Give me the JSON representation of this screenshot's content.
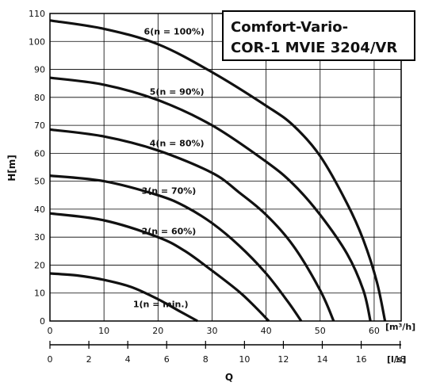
{
  "chart_data": {
    "type": "line",
    "title_lines": [
      "Comfort-Vario-",
      "COR-1 MVIE 3204/VR"
    ],
    "xlabel": "Q",
    "ylabel": "H[m]",
    "x_unit_primary": "[m³/h]",
    "x_unit_secondary": "[l/s]",
    "xlim": [
      0,
      65
    ],
    "ylim": [
      0,
      110
    ],
    "x_ticks_primary": [
      "0",
      "10",
      "20",
      "30",
      "40",
      "50",
      "60"
    ],
    "x_ticks_secondary": [
      "0",
      "2",
      "4",
      "6",
      "8",
      "10",
      "12",
      "14",
      "16",
      "18"
    ],
    "y_ticks": [
      "0",
      "10",
      "20",
      "30",
      "40",
      "50",
      "60",
      "70",
      "80",
      "90",
      "100",
      "110"
    ],
    "grid": true,
    "series": [
      {
        "name": "1(n = min.)",
        "x": [
          0,
          5,
          10,
          15,
          20,
          24,
          27.3
        ],
        "y": [
          17,
          16.3,
          14.7,
          12.2,
          7.8,
          3.5,
          0
        ]
      },
      {
        "name": "2(n = 60%)",
        "x": [
          0,
          10,
          20,
          25,
          30,
          35,
          38,
          40.5
        ],
        "y": [
          38.5,
          36,
          30,
          25,
          18,
          10.5,
          5,
          0
        ]
      },
      {
        "name": "3(n = 70%)",
        "x": [
          0,
          10,
          20,
          25,
          30,
          35,
          40,
          44,
          46.5
        ],
        "y": [
          52,
          50,
          45,
          41,
          35,
          27,
          17,
          7,
          0
        ]
      },
      {
        "name": "4(n = 80%)",
        "x": [
          0,
          10,
          20,
          30,
          35,
          40,
          45,
          50,
          52.5
        ],
        "y": [
          68.5,
          66,
          61,
          53,
          46,
          38,
          27,
          11,
          0
        ]
      },
      {
        "name": "5(n = 90%)",
        "x": [
          0,
          10,
          20,
          30,
          40,
          45,
          50,
          55,
          58,
          59.3
        ],
        "y": [
          87,
          84.5,
          79,
          70,
          57,
          49,
          38,
          24,
          11,
          0
        ]
      },
      {
        "name": "6(n = 100%)",
        "x": [
          0,
          10,
          20,
          30,
          40,
          45,
          50,
          55,
          58,
          60.5,
          62
        ],
        "y": [
          107.5,
          104.5,
          99,
          89,
          77,
          70,
          59,
          42,
          29,
          14,
          0
        ]
      }
    ]
  }
}
